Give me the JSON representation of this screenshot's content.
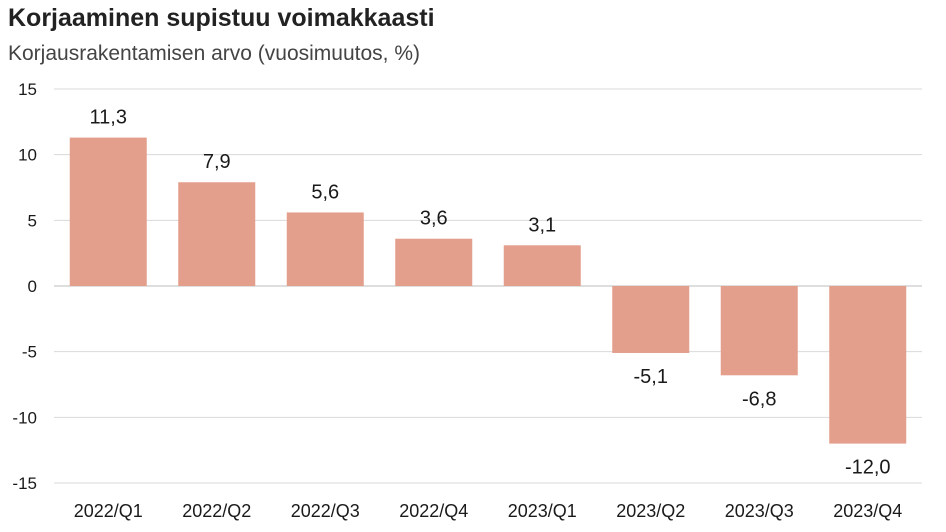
{
  "chart_data": {
    "type": "bar",
    "title": "Korjaaminen supistuu voimakkaasti",
    "subtitle": "Korjausrakentamisen arvo (vuosimuutos, %)",
    "categories": [
      "2022/Q1",
      "2022/Q2",
      "2022/Q3",
      "2022/Q4",
      "2023/Q1",
      "2023/Q2",
      "2023/Q3",
      "2023/Q4"
    ],
    "values": [
      11.3,
      7.9,
      5.6,
      3.6,
      3.1,
      -5.1,
      -6.8,
      -12.0
    ],
    "value_labels": [
      "11,3",
      "7,9",
      "5,6",
      "3,6",
      "3,1",
      "-5,1",
      "-6,8",
      "-12,0"
    ],
    "ylim": [
      -15,
      15
    ],
    "yticks": [
      15,
      10,
      5,
      0,
      -5,
      -10,
      -15
    ],
    "ytick_labels": [
      "15",
      "10",
      "5",
      "0",
      "-5",
      "-10",
      "-15"
    ],
    "bar_color": "#e49e8c",
    "grid": true
  }
}
